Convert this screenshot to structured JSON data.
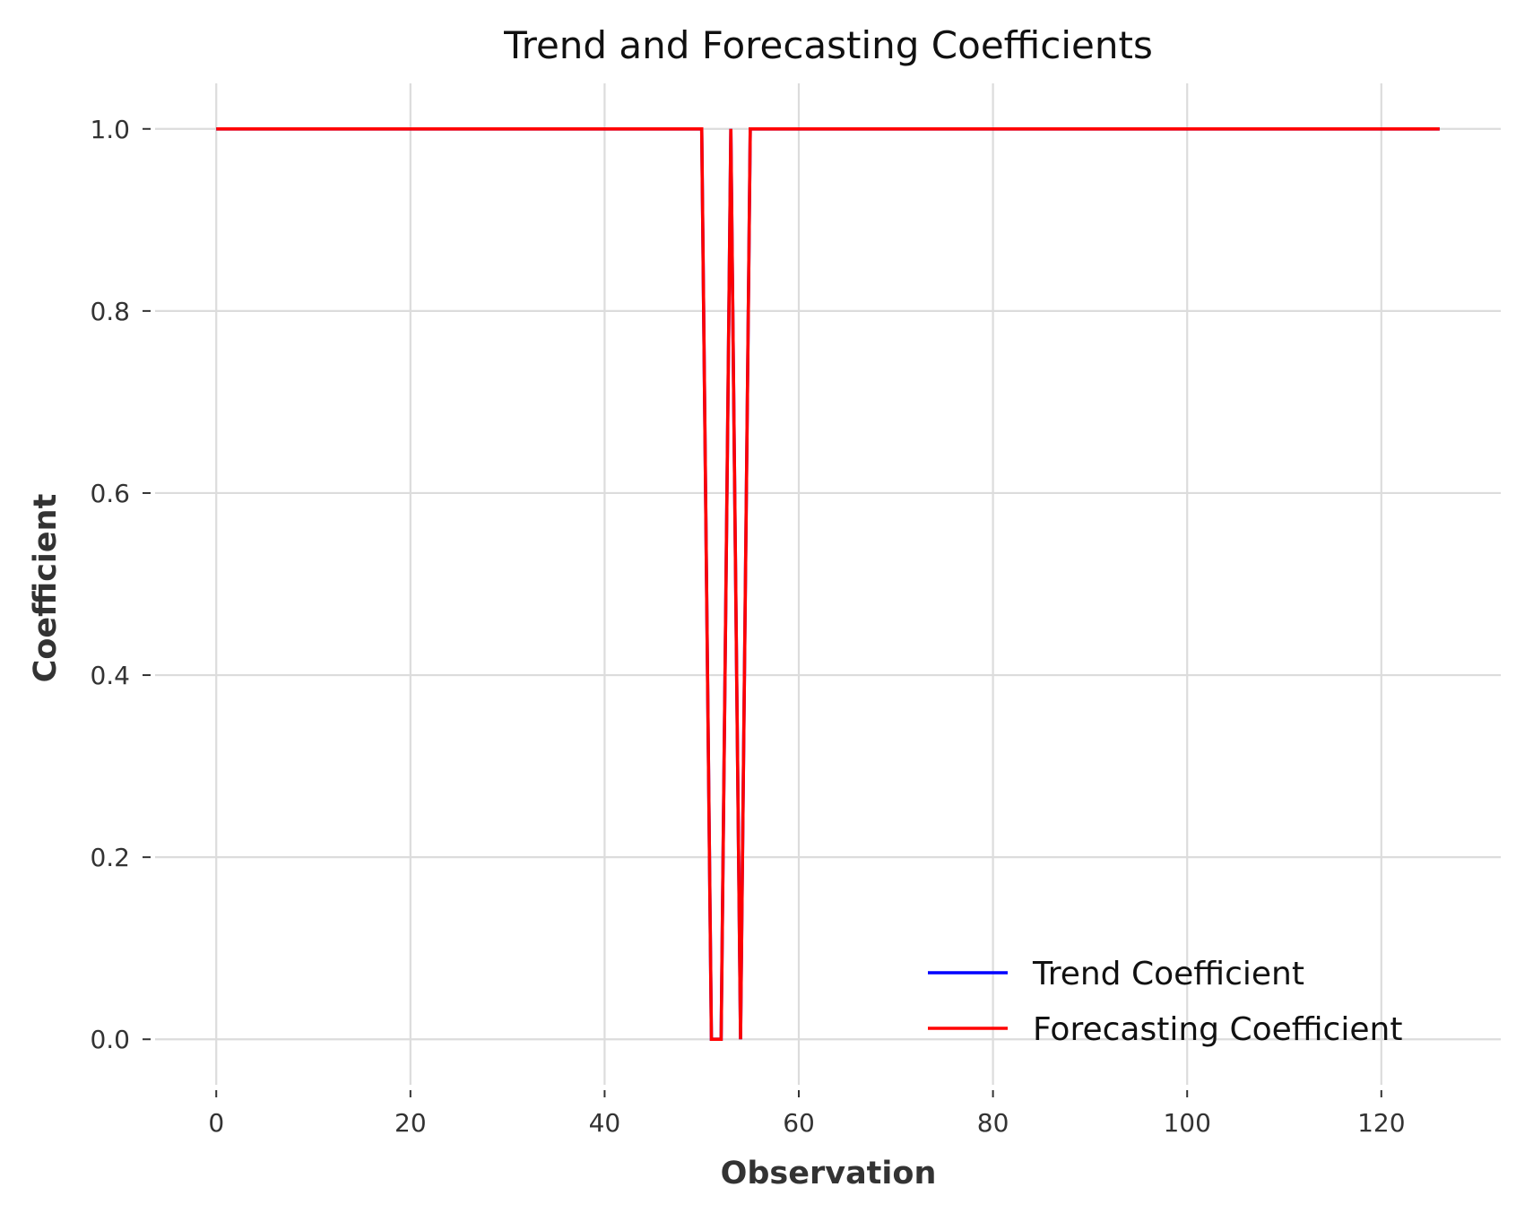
{
  "chart_data": {
    "type": "line",
    "title": "Trend and Forecasting Coefficients",
    "xlabel": "Observation",
    "ylabel": "Coefficient",
    "xlim": [
      -6.3,
      132.3
    ],
    "ylim": [
      -0.05,
      1.05
    ],
    "xticks": [
      0,
      20,
      40,
      60,
      80,
      100,
      120
    ],
    "yticks": [
      0.0,
      0.2,
      0.4,
      0.6,
      0.8,
      1.0
    ],
    "xtick_labels": [
      "0",
      "20",
      "40",
      "60",
      "80",
      "100",
      "120"
    ],
    "ytick_labels": [
      "0.0",
      "0.2",
      "0.4",
      "0.6",
      "0.8",
      "1.0"
    ],
    "grid": true,
    "legend_position": "lower-right",
    "series": [
      {
        "name": "Trend Coefficient",
        "color": "#0000ff",
        "x": [
          0,
          50,
          51,
          52,
          53,
          54,
          55,
          126
        ],
        "y": [
          1,
          1,
          0,
          0,
          1,
          0,
          1,
          1
        ]
      },
      {
        "name": "Forecasting Coefficient",
        "color": "#ff0000",
        "x": [
          0,
          50,
          51,
          52,
          53,
          54,
          55,
          126
        ],
        "y": [
          1,
          1,
          0,
          0,
          1,
          0,
          1,
          1
        ]
      }
    ]
  }
}
